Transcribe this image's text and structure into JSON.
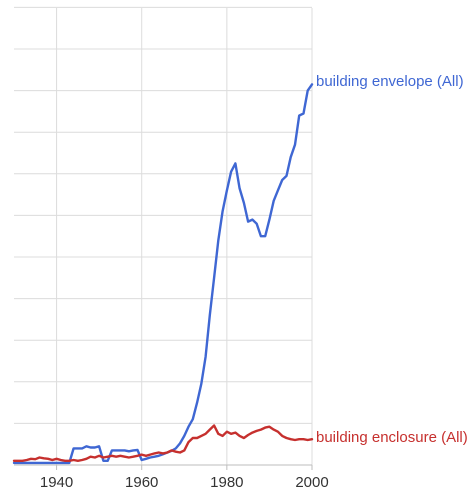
{
  "chart_data": {
    "type": "line",
    "title": "",
    "xlabel": "",
    "ylabel": "",
    "xlim": [
      1930,
      2000
    ],
    "ylim": [
      0,
      11
    ],
    "x_ticks": [
      "1940",
      "1960",
      "1980",
      "2000"
    ],
    "grid": true,
    "legend": "inline-right",
    "series": [
      {
        "name": "building envelope (All)",
        "color": "#3f67d3",
        "points": [
          [
            1930,
            0.05
          ],
          [
            1931,
            0.05
          ],
          [
            1932,
            0.05
          ],
          [
            1933,
            0.05
          ],
          [
            1934,
            0.05
          ],
          [
            1935,
            0.05
          ],
          [
            1936,
            0.05
          ],
          [
            1937,
            0.05
          ],
          [
            1938,
            0.05
          ],
          [
            1939,
            0.05
          ],
          [
            1940,
            0.05
          ],
          [
            1941,
            0.05
          ],
          [
            1942,
            0.05
          ],
          [
            1943,
            0.05
          ],
          [
            1944,
            0.4
          ],
          [
            1945,
            0.4
          ],
          [
            1946,
            0.4
          ],
          [
            1947,
            0.45
          ],
          [
            1948,
            0.42
          ],
          [
            1949,
            0.42
          ],
          [
            1950,
            0.45
          ],
          [
            1951,
            0.1
          ],
          [
            1952,
            0.1
          ],
          [
            1953,
            0.35
          ],
          [
            1954,
            0.35
          ],
          [
            1955,
            0.35
          ],
          [
            1956,
            0.35
          ],
          [
            1957,
            0.33
          ],
          [
            1958,
            0.35
          ],
          [
            1959,
            0.36
          ],
          [
            1960,
            0.12
          ],
          [
            1961,
            0.15
          ],
          [
            1962,
            0.18
          ],
          [
            1963,
            0.2
          ],
          [
            1964,
            0.22
          ],
          [
            1965,
            0.26
          ],
          [
            1966,
            0.3
          ],
          [
            1967,
            0.34
          ],
          [
            1968,
            0.4
          ],
          [
            1969,
            0.52
          ],
          [
            1970,
            0.7
          ],
          [
            1971,
            0.92
          ],
          [
            1972,
            1.1
          ],
          [
            1973,
            1.5
          ],
          [
            1974,
            1.95
          ],
          [
            1975,
            2.6
          ],
          [
            1976,
            3.6
          ],
          [
            1977,
            4.5
          ],
          [
            1978,
            5.4
          ],
          [
            1979,
            6.1
          ],
          [
            1980,
            6.6
          ],
          [
            1981,
            7.05
          ],
          [
            1982,
            7.25
          ],
          [
            1983,
            6.65
          ],
          [
            1984,
            6.3
          ],
          [
            1985,
            5.85
          ],
          [
            1986,
            5.9
          ],
          [
            1987,
            5.8
          ],
          [
            1988,
            5.5
          ],
          [
            1989,
            5.5
          ],
          [
            1990,
            5.9
          ],
          [
            1991,
            6.35
          ],
          [
            1992,
            6.6
          ],
          [
            1993,
            6.85
          ],
          [
            1994,
            6.95
          ],
          [
            1995,
            7.4
          ],
          [
            1996,
            7.7
          ],
          [
            1997,
            8.4
          ],
          [
            1998,
            8.45
          ],
          [
            1999,
            9.0
          ],
          [
            2000,
            9.15
          ]
        ]
      },
      {
        "name": "building enclosure (All)",
        "color": "#c6302e",
        "points": [
          [
            1930,
            0.1
          ],
          [
            1931,
            0.1
          ],
          [
            1932,
            0.1
          ],
          [
            1933,
            0.12
          ],
          [
            1934,
            0.15
          ],
          [
            1935,
            0.14
          ],
          [
            1936,
            0.18
          ],
          [
            1937,
            0.16
          ],
          [
            1938,
            0.15
          ],
          [
            1939,
            0.12
          ],
          [
            1940,
            0.15
          ],
          [
            1941,
            0.12
          ],
          [
            1942,
            0.1
          ],
          [
            1943,
            0.1
          ],
          [
            1944,
            0.12
          ],
          [
            1945,
            0.1
          ],
          [
            1946,
            0.12
          ],
          [
            1947,
            0.15
          ],
          [
            1948,
            0.2
          ],
          [
            1949,
            0.18
          ],
          [
            1950,
            0.22
          ],
          [
            1951,
            0.18
          ],
          [
            1952,
            0.2
          ],
          [
            1953,
            0.22
          ],
          [
            1954,
            0.2
          ],
          [
            1955,
            0.22
          ],
          [
            1956,
            0.2
          ],
          [
            1957,
            0.18
          ],
          [
            1958,
            0.2
          ],
          [
            1959,
            0.22
          ],
          [
            1960,
            0.25
          ],
          [
            1961,
            0.22
          ],
          [
            1962,
            0.25
          ],
          [
            1963,
            0.28
          ],
          [
            1964,
            0.3
          ],
          [
            1965,
            0.28
          ],
          [
            1966,
            0.3
          ],
          [
            1967,
            0.35
          ],
          [
            1968,
            0.32
          ],
          [
            1969,
            0.3
          ],
          [
            1970,
            0.35
          ],
          [
            1971,
            0.55
          ],
          [
            1972,
            0.65
          ],
          [
            1973,
            0.65
          ],
          [
            1974,
            0.7
          ],
          [
            1975,
            0.75
          ],
          [
            1976,
            0.85
          ],
          [
            1977,
            0.95
          ],
          [
            1978,
            0.75
          ],
          [
            1979,
            0.7
          ],
          [
            1980,
            0.8
          ],
          [
            1981,
            0.75
          ],
          [
            1982,
            0.78
          ],
          [
            1983,
            0.7
          ],
          [
            1984,
            0.65
          ],
          [
            1985,
            0.72
          ],
          [
            1986,
            0.78
          ],
          [
            1987,
            0.82
          ],
          [
            1988,
            0.85
          ],
          [
            1989,
            0.9
          ],
          [
            1990,
            0.92
          ],
          [
            1991,
            0.85
          ],
          [
            1992,
            0.8
          ],
          [
            1993,
            0.7
          ],
          [
            1994,
            0.65
          ],
          [
            1995,
            0.62
          ],
          [
            1996,
            0.6
          ],
          [
            1997,
            0.62
          ],
          [
            1998,
            0.62
          ],
          [
            1999,
            0.6
          ],
          [
            2000,
            0.62
          ]
        ]
      }
    ]
  }
}
